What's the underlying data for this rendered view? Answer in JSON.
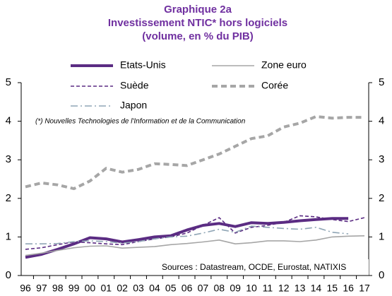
{
  "chart_data": {
    "type": "line",
    "title": [
      "Graphique 2a",
      "Investissement NTIC* hors logiciels",
      "(volume, en % du PIB)"
    ],
    "annotation": "(*) Nouvelles Technologies de l'Information et de la Communication",
    "source": "Sources : Datastream, OCDE, Eurostat, NATIXIS",
    "categories": [
      "96",
      "97",
      "98",
      "99",
      "00",
      "01",
      "02",
      "03",
      "04",
      "05",
      "06",
      "07",
      "08",
      "09",
      "10",
      "11",
      "12",
      "13",
      "14",
      "15",
      "16",
      "17"
    ],
    "series": [
      {
        "name": "Etats-Unis",
        "color": "#5b2c83",
        "style": "solid-thick",
        "values": [
          0.47,
          0.55,
          0.68,
          0.82,
          0.98,
          0.95,
          0.87,
          0.93,
          1.0,
          1.03,
          1.18,
          1.3,
          1.35,
          1.27,
          1.37,
          1.35,
          1.38,
          1.42,
          1.45,
          1.48,
          1.48,
          null
        ]
      },
      {
        "name": "Zone euro",
        "color": "#a6a6a6",
        "style": "solid",
        "values": [
          0.52,
          0.58,
          0.65,
          0.72,
          0.76,
          0.77,
          0.71,
          0.73,
          0.75,
          0.8,
          0.83,
          0.87,
          0.92,
          0.82,
          0.85,
          0.9,
          0.9,
          0.88,
          0.92,
          1.0,
          1.02,
          1.03
        ]
      },
      {
        "name": "Suède",
        "color": "#5b2c83",
        "style": "dashed",
        "values": [
          0.68,
          0.72,
          0.8,
          0.87,
          0.85,
          0.82,
          0.8,
          0.88,
          0.95,
          1.0,
          1.1,
          1.3,
          1.5,
          1.1,
          1.25,
          1.3,
          1.38,
          1.55,
          1.52,
          1.45,
          1.4,
          1.5
        ]
      },
      {
        "name": "Corée",
        "color": "#a6a6a6",
        "style": "dashed-thick",
        "values": [
          2.3,
          2.4,
          2.35,
          2.25,
          2.45,
          2.78,
          2.68,
          2.75,
          2.9,
          2.88,
          2.85,
          3.0,
          3.15,
          3.35,
          3.55,
          3.62,
          3.85,
          3.95,
          4.12,
          4.08,
          4.1,
          4.1
        ]
      },
      {
        "name": "Japon",
        "color": "#8fa5b5",
        "style": "dash-dot",
        "values": [
          0.82,
          0.82,
          0.83,
          0.88,
          0.9,
          0.88,
          0.84,
          0.88,
          0.95,
          1.0,
          1.02,
          1.1,
          1.2,
          1.12,
          1.28,
          1.25,
          1.22,
          1.2,
          1.25,
          1.12,
          1.08,
          null
        ]
      }
    ],
    "ylim": [
      0,
      5
    ],
    "yticks": [
      0,
      1,
      2,
      3,
      4,
      5
    ],
    "grid": false
  }
}
